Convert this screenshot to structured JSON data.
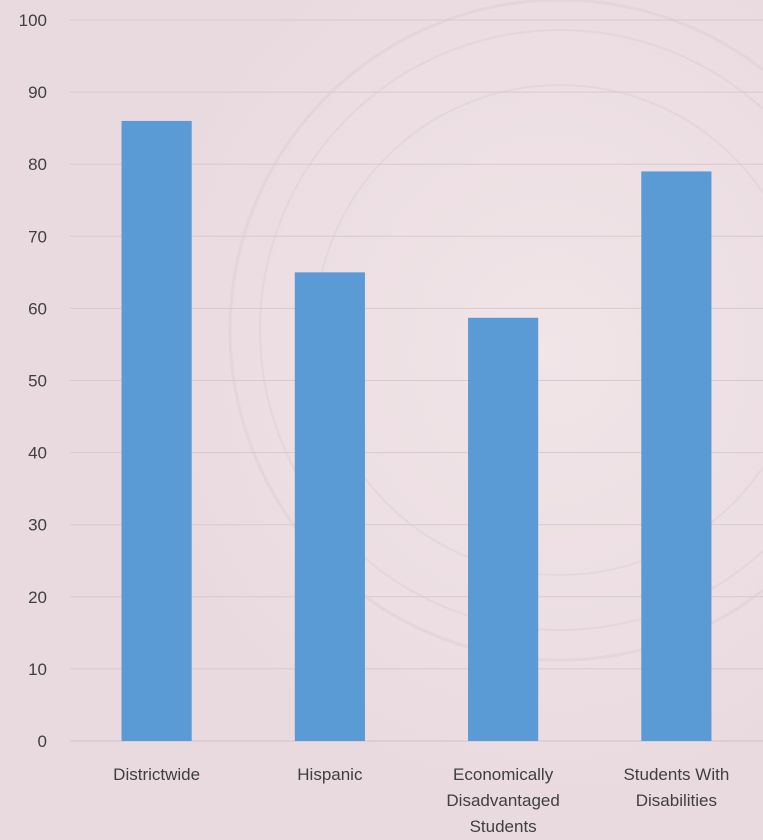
{
  "chart_data": {
    "type": "bar",
    "categories": [
      [
        "Districtwide"
      ],
      [
        "Hispanic"
      ],
      [
        "Economically",
        "Disadvantaged",
        "Students"
      ],
      [
        "Students With",
        "Disabilities"
      ]
    ],
    "values": [
      86,
      65,
      58.7,
      79
    ],
    "ylim": [
      0,
      100
    ],
    "yticks": [
      0,
      10,
      20,
      30,
      40,
      50,
      60,
      70,
      80,
      90,
      100
    ],
    "grid": true,
    "bar_color": "#5b9bd5",
    "title": "",
    "xlabel": "",
    "ylabel": ""
  }
}
